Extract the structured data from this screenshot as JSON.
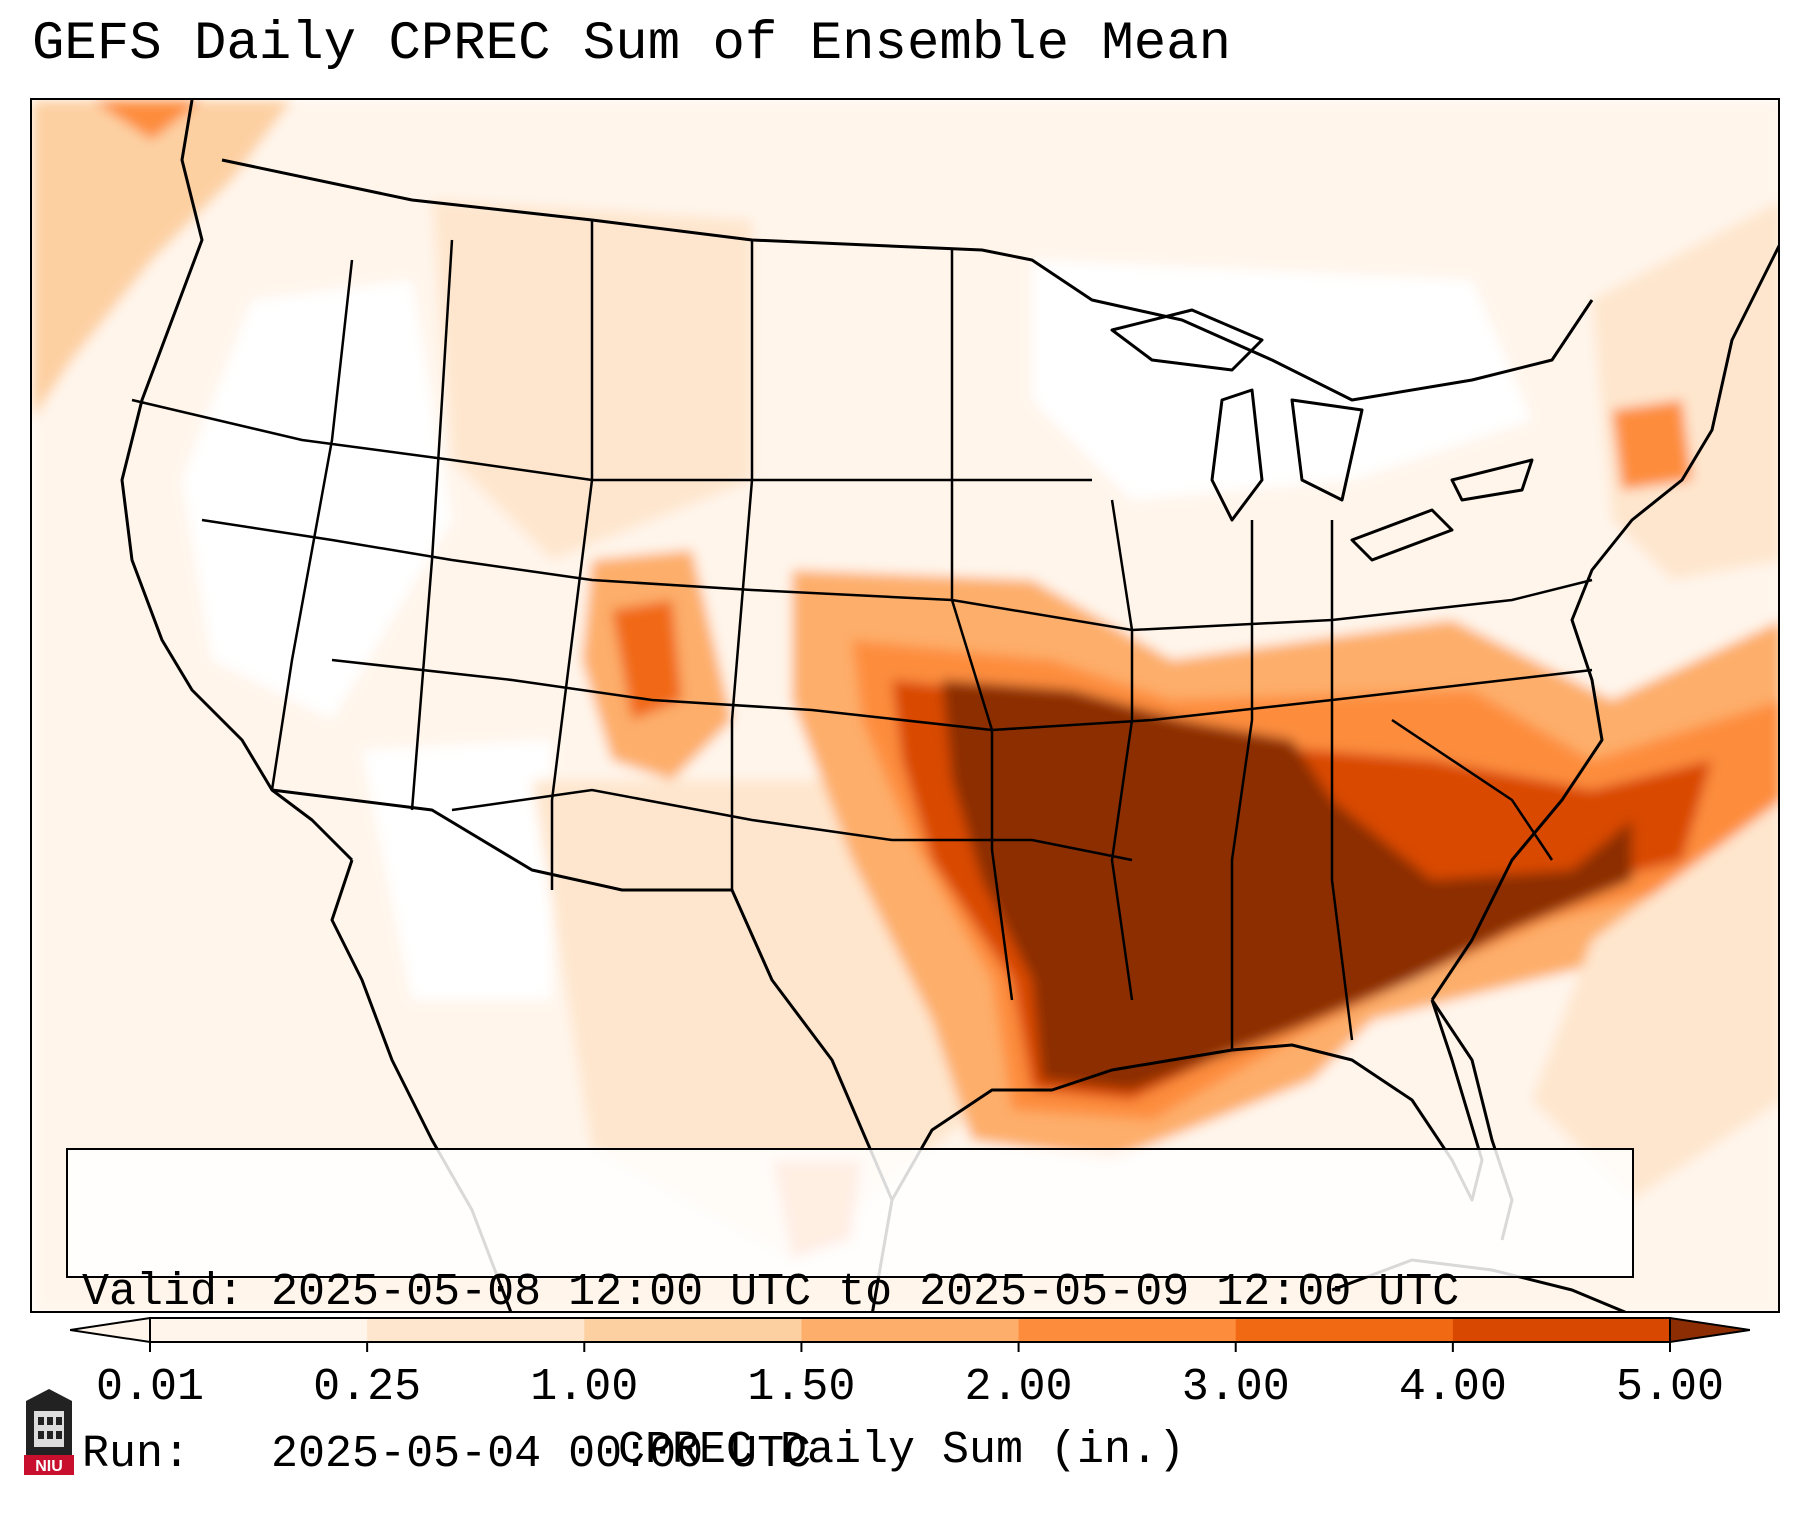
{
  "title": "GEFS Daily CPREC Sum of Ensemble Mean",
  "info": {
    "valid_label": "Valid:",
    "valid_value": "2025-05-08 12:00 UTC to 2025-05-09 12:00 UTC",
    "run_label": "Run:",
    "run_value": "2025-05-04 00:00 UTC"
  },
  "colorbar": {
    "label": "CPREC Daily Sum (in.)",
    "ticks": [
      "0.01",
      "0.25",
      "1.00",
      "1.50",
      "2.00",
      "3.00",
      "4.00",
      "5.00"
    ],
    "colors": [
      "#fff5eb",
      "#fee6ce",
      "#fdd0a2",
      "#fdae6b",
      "#fd8d3c",
      "#f16913",
      "#d94801",
      "#8c2d04"
    ],
    "extend": "both"
  },
  "logo": {
    "text": "NIU",
    "accent": "#c8102e"
  },
  "map": {
    "projection": "Lambert conformal",
    "coastlines": true,
    "state_borders": true
  }
}
